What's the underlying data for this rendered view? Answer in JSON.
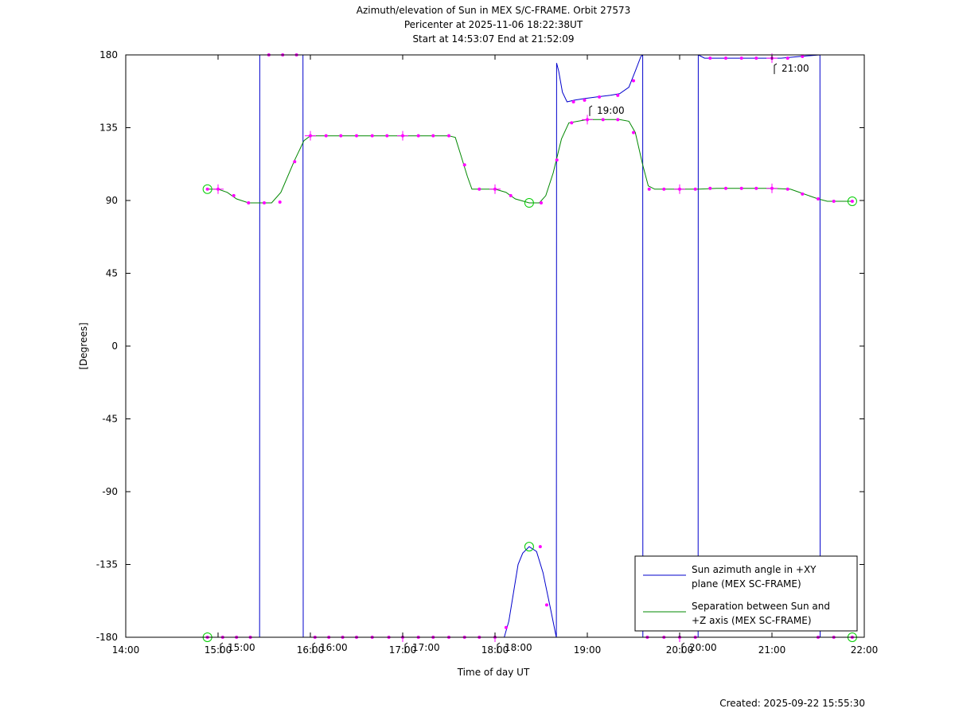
{
  "chart_data": {
    "type": "line",
    "title_lines": [
      "Azimuth/elevation of Sun in MEX S/C-FRAME.  Orbit 27573",
      "Pericenter at 2025-11-06 18:22:38UT",
      "Start at 14:53:07 End at 21:52:09"
    ],
    "xlabel": "Time of day UT",
    "ylabel": "[Degrees]",
    "x_unit": "hours",
    "xlim": [
      14.0,
      22.0
    ],
    "ylim": [
      -180,
      180
    ],
    "x_ticks": [
      14,
      15,
      16,
      17,
      18,
      19,
      20,
      21,
      22
    ],
    "x_tick_labels": [
      "14:00",
      "15:00",
      "16:00",
      "17:00",
      "18:00",
      "19:00",
      "20:00",
      "21:00",
      "22:00"
    ],
    "y_ticks": [
      180,
      135,
      90,
      45,
      0,
      -45,
      -90,
      -135,
      -180
    ],
    "y_tick_labels": [
      "180",
      "135",
      "90",
      "45",
      "0",
      "-45",
      "-90",
      "-135",
      "-180"
    ],
    "grid": false,
    "legend_position": "bottom-right",
    "series": [
      {
        "name": "Sun azimuth angle in +XY plane (MEX SC-FRAME)",
        "legend_lines": [
          "Sun azimuth angle in +XY",
          "plane (MEX SC-FRAME)"
        ],
        "color": "#0000cc",
        "points": [
          [
            14.885,
            -180
          ],
          [
            15.45,
            -180
          ],
          [
            15.452,
            180
          ],
          [
            15.92,
            180
          ],
          [
            15.922,
            -180
          ],
          [
            18.1,
            -180
          ],
          [
            18.15,
            -170
          ],
          [
            18.25,
            -135
          ],
          [
            18.3,
            -128
          ],
          [
            18.37,
            -124
          ],
          [
            18.45,
            -127
          ],
          [
            18.52,
            -140
          ],
          [
            18.6,
            -162
          ],
          [
            18.66,
            -179
          ],
          [
            18.665,
            -180
          ],
          [
            18.667,
            175
          ],
          [
            18.69,
            170
          ],
          [
            18.73,
            157
          ],
          [
            18.78,
            151
          ],
          [
            18.86,
            152
          ],
          [
            18.97,
            153
          ],
          [
            19.1,
            154
          ],
          [
            19.25,
            155
          ],
          [
            19.35,
            156
          ],
          [
            19.45,
            160
          ],
          [
            19.52,
            170
          ],
          [
            19.58,
            179
          ],
          [
            19.6,
            180
          ],
          [
            19.602,
            -180
          ],
          [
            20.2,
            -180
          ],
          [
            20.202,
            180
          ],
          [
            20.27,
            178
          ],
          [
            20.5,
            178
          ],
          [
            20.8,
            178
          ],
          [
            21.1,
            178
          ],
          [
            21.3,
            179
          ],
          [
            21.52,
            180
          ],
          [
            21.522,
            -180
          ],
          [
            21.87,
            -180
          ]
        ],
        "markers": [
          [
            14.885,
            -180
          ],
          [
            15.05,
            -180
          ],
          [
            15.2,
            -180
          ],
          [
            15.35,
            -180
          ],
          [
            15.55,
            180
          ],
          [
            15.7,
            180
          ],
          [
            15.85,
            180
          ],
          [
            16.05,
            -180
          ],
          [
            16.2,
            -180
          ],
          [
            16.35,
            -180
          ],
          [
            16.5,
            -180
          ],
          [
            16.67,
            -180
          ],
          [
            16.85,
            -180
          ],
          [
            17.0,
            -180
          ],
          [
            17.17,
            -180
          ],
          [
            17.33,
            -180
          ],
          [
            17.5,
            -180
          ],
          [
            17.67,
            -180
          ],
          [
            17.83,
            -180
          ],
          [
            18.0,
            -180
          ],
          [
            18.12,
            -174
          ],
          [
            18.49,
            -124
          ],
          [
            18.56,
            -160
          ],
          [
            18.85,
            151
          ],
          [
            18.97,
            152
          ],
          [
            19.13,
            154
          ],
          [
            19.33,
            155
          ],
          [
            19.5,
            164
          ],
          [
            19.65,
            -180
          ],
          [
            19.83,
            -180
          ],
          [
            20.0,
            -180
          ],
          [
            20.17,
            -180
          ],
          [
            20.33,
            178
          ],
          [
            20.5,
            178
          ],
          [
            20.67,
            178
          ],
          [
            20.83,
            178
          ],
          [
            21.0,
            178
          ],
          [
            21.17,
            178
          ],
          [
            21.33,
            179
          ],
          [
            21.5,
            -180
          ],
          [
            21.67,
            -180
          ],
          [
            21.87,
            -180
          ]
        ],
        "time_labels": [
          {
            "x": 15.0,
            "y": -180,
            "text": "15:00"
          },
          {
            "x": 16.0,
            "y": -180,
            "text": "16:00"
          },
          {
            "x": 17.0,
            "y": -180,
            "text": "17:00"
          },
          {
            "x": 18.0,
            "y": -180,
            "text": "18:00"
          },
          {
            "x": 19.0,
            "y": 152,
            "text": "19:00"
          },
          {
            "x": 20.0,
            "y": -180,
            "text": "20:00"
          },
          {
            "x": 21.0,
            "y": 178,
            "text": "21:00"
          }
        ]
      },
      {
        "name": "Separation between Sun and +Z axis (MEX SC-FRAME)",
        "legend_lines": [
          "Separation between Sun and",
          "+Z axis (MEX SC-FRAME)"
        ],
        "color": "#008800",
        "points": [
          [
            14.885,
            97
          ],
          [
            15.0,
            97
          ],
          [
            15.1,
            95
          ],
          [
            15.2,
            91
          ],
          [
            15.33,
            88.5
          ],
          [
            15.58,
            88.5
          ],
          [
            15.68,
            95
          ],
          [
            15.83,
            115
          ],
          [
            15.93,
            127
          ],
          [
            16.0,
            130
          ],
          [
            16.5,
            130
          ],
          [
            17.0,
            130
          ],
          [
            17.5,
            130
          ],
          [
            17.57,
            129
          ],
          [
            17.63,
            118
          ],
          [
            17.7,
            105
          ],
          [
            17.75,
            97
          ],
          [
            17.85,
            97
          ],
          [
            18.0,
            97
          ],
          [
            18.12,
            95
          ],
          [
            18.22,
            91
          ],
          [
            18.37,
            88.5
          ],
          [
            18.48,
            88.5
          ],
          [
            18.55,
            93
          ],
          [
            18.63,
            107
          ],
          [
            18.72,
            128
          ],
          [
            18.8,
            138
          ],
          [
            19.0,
            140
          ],
          [
            19.35,
            140
          ],
          [
            19.45,
            139
          ],
          [
            19.52,
            132
          ],
          [
            19.6,
            112
          ],
          [
            19.66,
            99
          ],
          [
            19.73,
            97
          ],
          [
            20.0,
            97
          ],
          [
            20.2,
            97
          ],
          [
            20.4,
            97.5
          ],
          [
            21.0,
            97.5
          ],
          [
            21.2,
            97
          ],
          [
            21.35,
            94
          ],
          [
            21.5,
            91
          ],
          [
            21.6,
            89.5
          ],
          [
            21.87,
            89.5
          ]
        ],
        "markers": [
          [
            14.885,
            97
          ],
          [
            15.0,
            97
          ],
          [
            15.17,
            93
          ],
          [
            15.33,
            88.5
          ],
          [
            15.5,
            88.5
          ],
          [
            15.67,
            89
          ],
          [
            15.83,
            114
          ],
          [
            16.0,
            130
          ],
          [
            16.17,
            130
          ],
          [
            16.33,
            130
          ],
          [
            16.5,
            130
          ],
          [
            16.67,
            130
          ],
          [
            16.83,
            130
          ],
          [
            17.0,
            130
          ],
          [
            17.17,
            130
          ],
          [
            17.33,
            130
          ],
          [
            17.5,
            130
          ],
          [
            17.67,
            112
          ],
          [
            17.83,
            97
          ],
          [
            18.0,
            97
          ],
          [
            18.17,
            93
          ],
          [
            18.5,
            88.5
          ],
          [
            18.67,
            115
          ],
          [
            18.83,
            138
          ],
          [
            19.0,
            140
          ],
          [
            19.17,
            140
          ],
          [
            19.33,
            140
          ],
          [
            19.5,
            132
          ],
          [
            19.67,
            97
          ],
          [
            19.83,
            97
          ],
          [
            20.0,
            97
          ],
          [
            20.17,
            97
          ],
          [
            20.33,
            97.5
          ],
          [
            20.5,
            97.5
          ],
          [
            20.67,
            97.5
          ],
          [
            20.83,
            97.5
          ],
          [
            21.0,
            97.5
          ],
          [
            21.17,
            97
          ],
          [
            21.33,
            94
          ],
          [
            21.5,
            91
          ],
          [
            21.67,
            89.5
          ],
          [
            21.87,
            89.5
          ]
        ]
      }
    ],
    "circle_markers": [
      {
        "x": 14.885,
        "y": 97
      },
      {
        "x": 14.885,
        "y": -180
      },
      {
        "x": 18.37,
        "y": 88.5
      },
      {
        "x": 18.37,
        "y": -124
      },
      {
        "x": 21.87,
        "y": 89.5
      },
      {
        "x": 21.87,
        "y": -180
      }
    ],
    "marker_color": "#ff00ff",
    "circle_color": "#00cc00",
    "footer": "Created: 2025-09-22 15:55:30"
  }
}
